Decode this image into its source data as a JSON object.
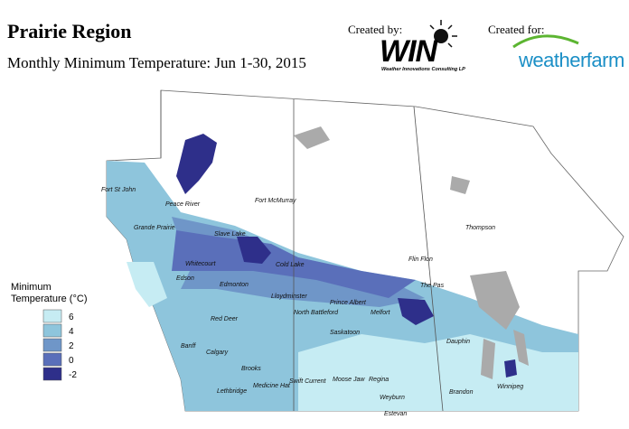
{
  "header": {
    "title": "Prairie Region",
    "subtitle": "Monthly Minimum Temperature: Jun 1-30, 2015"
  },
  "credits": {
    "created_by": "Created by:",
    "win_logo": "WIN",
    "win_tagline": "Weather Innovations Consulting LP",
    "created_for": "Created for:",
    "weatherfarm_logo": "weatherfarm"
  },
  "legend": {
    "title": "Minimum Temperature (°C)",
    "items": [
      {
        "value": 6,
        "color": "#c6ecf3"
      },
      {
        "value": 4,
        "color": "#8ec5dc"
      },
      {
        "value": 2,
        "color": "#6f96c8"
      },
      {
        "value": 0,
        "color": "#5a6fba"
      },
      {
        "value": -2,
        "color": "#2e2f8a"
      }
    ]
  },
  "places": [
    "Fort St John",
    "Peace River",
    "Fort McMurray",
    "Grande Prairie",
    "Slave Lake",
    "Thompson",
    "Whitecourt",
    "Cold Lake",
    "Flin Flon",
    "Edson",
    "Edmonton",
    "The Pas",
    "Lloydminster",
    "Prince Albert",
    "North Battleford",
    "Melfort",
    "Red Deer",
    "Saskatoon",
    "Dauphin",
    "Banff",
    "Calgary",
    "Brooks",
    "Regina",
    "Swift Current",
    "Moose Jaw",
    "Medicine Hat",
    "Lethbridge",
    "Brandon",
    "Winnipeg",
    "Weyburn",
    "Estevan"
  ]
}
